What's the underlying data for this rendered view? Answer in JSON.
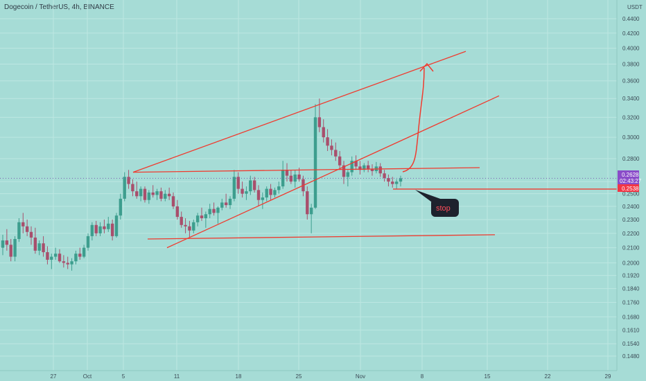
{
  "header": {
    "title": "Dogecoin / TetherUS, 4h, BINANCE",
    "currency": "USDT"
  },
  "colors": {
    "background": "#a6dcd6",
    "grid": "#bde7e2",
    "candle_up": "#3d9e8e",
    "candle_down": "#a84f6c",
    "drawing": "#f03a2e",
    "price_tag": "#8a4cc9",
    "stop_tag": "#f23645",
    "callout_bg": "#1e222d"
  },
  "chart_data": {
    "type": "candlestick",
    "y_scale": "log",
    "ylim": [
      0.142,
      0.45
    ],
    "y_ticks": [
      "0.4400",
      "0.4200",
      "0.4000",
      "0.3800",
      "0.3600",
      "0.3400",
      "0.3200",
      "0.3000",
      "0.2800",
      "0.2600",
      "0.2500",
      "0.2400",
      "0.2300",
      "0.2200",
      "0.2100",
      "0.2000",
      "0.1920",
      "0.1840",
      "0.1760",
      "0.1680",
      "0.1610",
      "0.1540",
      "0.1480"
    ],
    "x_ticks": [
      "27",
      "Oct",
      "5",
      "11",
      "18",
      "25",
      "Nov",
      "8",
      "15",
      "22",
      "29"
    ],
    "current_price": "0.2628",
    "countdown": "02:43:27",
    "stop_price": "0.2538",
    "annotations": [
      "stop"
    ],
    "series": [
      {
        "values": [
          [
            0.21,
            0.219,
            0.205,
            0.215
          ],
          [
            0.215,
            0.223,
            0.208,
            0.212
          ],
          [
            0.212,
            0.216,
            0.201,
            0.204
          ],
          [
            0.204,
            0.218,
            0.201,
            0.216
          ],
          [
            0.216,
            0.231,
            0.214,
            0.228
          ],
          [
            0.228,
            0.235,
            0.22,
            0.225
          ],
          [
            0.225,
            0.23,
            0.218,
            0.221
          ],
          [
            0.221,
            0.225,
            0.212,
            0.217
          ],
          [
            0.217,
            0.224,
            0.206,
            0.208
          ],
          [
            0.208,
            0.215,
            0.205,
            0.213
          ],
          [
            0.213,
            0.218,
            0.204,
            0.207
          ],
          [
            0.207,
            0.211,
            0.199,
            0.202
          ],
          [
            0.202,
            0.206,
            0.196,
            0.204
          ],
          [
            0.204,
            0.21,
            0.202,
            0.206
          ],
          [
            0.206,
            0.209,
            0.2,
            0.201
          ],
          [
            0.201,
            0.205,
            0.197,
            0.2
          ],
          [
            0.2,
            0.204,
            0.196,
            0.199
          ],
          [
            0.199,
            0.203,
            0.195,
            0.201
          ],
          [
            0.201,
            0.208,
            0.199,
            0.206
          ],
          [
            0.206,
            0.21,
            0.202,
            0.204
          ],
          [
            0.204,
            0.212,
            0.203,
            0.21
          ],
          [
            0.21,
            0.22,
            0.208,
            0.218
          ],
          [
            0.218,
            0.228,
            0.215,
            0.226
          ],
          [
            0.226,
            0.229,
            0.218,
            0.22
          ],
          [
            0.22,
            0.228,
            0.218,
            0.225
          ],
          [
            0.225,
            0.23,
            0.22,
            0.223
          ],
          [
            0.223,
            0.232,
            0.221,
            0.227
          ],
          [
            0.227,
            0.23,
            0.215,
            0.218
          ],
          [
            0.218,
            0.235,
            0.217,
            0.233
          ],
          [
            0.233,
            0.25,
            0.23,
            0.246
          ],
          [
            0.246,
            0.268,
            0.244,
            0.264
          ],
          [
            0.264,
            0.27,
            0.254,
            0.258
          ],
          [
            0.258,
            0.262,
            0.248,
            0.252
          ],
          [
            0.252,
            0.26,
            0.246,
            0.248
          ],
          [
            0.248,
            0.256,
            0.244,
            0.254
          ],
          [
            0.254,
            0.256,
            0.243,
            0.245
          ],
          [
            0.245,
            0.253,
            0.242,
            0.251
          ],
          [
            0.251,
            0.257,
            0.247,
            0.249
          ],
          [
            0.249,
            0.254,
            0.245,
            0.252
          ],
          [
            0.252,
            0.255,
            0.244,
            0.246
          ],
          [
            0.246,
            0.253,
            0.244,
            0.25
          ],
          [
            0.25,
            0.255,
            0.245,
            0.248
          ],
          [
            0.248,
            0.251,
            0.238,
            0.24
          ],
          [
            0.24,
            0.245,
            0.23,
            0.232
          ],
          [
            0.232,
            0.236,
            0.224,
            0.226
          ],
          [
            0.226,
            0.231,
            0.22,
            0.225
          ],
          [
            0.225,
            0.229,
            0.217,
            0.222
          ],
          [
            0.222,
            0.23,
            0.22,
            0.228
          ],
          [
            0.228,
            0.235,
            0.225,
            0.233
          ],
          [
            0.233,
            0.239,
            0.229,
            0.231
          ],
          [
            0.231,
            0.236,
            0.224,
            0.234
          ],
          [
            0.234,
            0.242,
            0.231,
            0.238
          ],
          [
            0.238,
            0.243,
            0.233,
            0.235
          ],
          [
            0.235,
            0.24,
            0.227,
            0.239
          ],
          [
            0.239,
            0.246,
            0.237,
            0.243
          ],
          [
            0.243,
            0.25,
            0.239,
            0.241
          ],
          [
            0.241,
            0.248,
            0.238,
            0.246
          ],
          [
            0.246,
            0.27,
            0.244,
            0.264
          ],
          [
            0.264,
            0.268,
            0.25,
            0.254
          ],
          [
            0.254,
            0.26,
            0.247,
            0.25
          ],
          [
            0.25,
            0.256,
            0.245,
            0.252
          ],
          [
            0.252,
            0.265,
            0.249,
            0.261
          ],
          [
            0.261,
            0.264,
            0.251,
            0.253
          ],
          [
            0.253,
            0.257,
            0.24,
            0.245
          ],
          [
            0.245,
            0.251,
            0.238,
            0.247
          ],
          [
            0.247,
            0.256,
            0.244,
            0.254
          ],
          [
            0.254,
            0.258,
            0.245,
            0.249
          ],
          [
            0.249,
            0.255,
            0.247,
            0.253
          ],
          [
            0.253,
            0.26,
            0.25,
            0.256
          ],
          [
            0.256,
            0.278,
            0.254,
            0.27
          ],
          [
            0.27,
            0.276,
            0.26,
            0.265
          ],
          [
            0.265,
            0.27,
            0.258,
            0.26
          ],
          [
            0.26,
            0.27,
            0.255,
            0.266
          ],
          [
            0.266,
            0.272,
            0.26,
            0.262
          ],
          [
            0.262,
            0.265,
            0.248,
            0.252
          ],
          [
            0.252,
            0.256,
            0.23,
            0.234
          ],
          [
            0.234,
            0.242,
            0.22,
            0.239
          ],
          [
            0.239,
            0.334,
            0.238,
            0.32
          ],
          [
            0.32,
            0.34,
            0.305,
            0.31
          ],
          [
            0.31,
            0.318,
            0.295,
            0.3
          ],
          [
            0.3,
            0.308,
            0.287,
            0.292
          ],
          [
            0.292,
            0.298,
            0.283,
            0.288
          ],
          [
            0.288,
            0.295,
            0.278,
            0.282
          ],
          [
            0.282,
            0.287,
            0.27,
            0.274
          ],
          [
            0.274,
            0.278,
            0.258,
            0.264
          ],
          [
            0.264,
            0.27,
            0.256,
            0.268
          ],
          [
            0.268,
            0.282,
            0.265,
            0.278
          ],
          [
            0.278,
            0.283,
            0.27,
            0.273
          ],
          [
            0.273,
            0.278,
            0.266,
            0.27
          ],
          [
            0.27,
            0.276,
            0.268,
            0.274
          ],
          [
            0.274,
            0.278,
            0.268,
            0.271
          ],
          [
            0.271,
            0.275,
            0.265,
            0.269
          ],
          [
            0.269,
            0.277,
            0.267,
            0.273
          ],
          [
            0.273,
            0.276,
            0.264,
            0.267
          ],
          [
            0.267,
            0.27,
            0.26,
            0.263
          ],
          [
            0.263,
            0.266,
            0.256,
            0.26
          ],
          [
            0.26,
            0.264,
            0.255,
            0.258
          ],
          [
            0.258,
            0.262,
            0.254,
            0.26
          ],
          [
            0.26,
            0.265,
            0.256,
            0.2628
          ]
        ]
      }
    ],
    "drawings": [
      {
        "type": "trendline",
        "points": [
          [
            "5",
            0.268
          ],
          [
            "15",
            0.396
          ]
        ]
      },
      {
        "type": "trendline",
        "points": [
          [
            "5",
            0.21
          ],
          [
            "15",
            0.343
          ]
        ]
      },
      {
        "type": "trendline",
        "points": [
          [
            "5",
            0.268
          ],
          [
            "15",
            0.272
          ]
        ]
      },
      {
        "type": "trendline",
        "points": [
          [
            "5",
            0.216
          ],
          [
            "15",
            0.219
          ]
        ]
      },
      {
        "type": "horizontal_ray",
        "price": 0.2538
      },
      {
        "type": "arrow_up"
      }
    ]
  }
}
